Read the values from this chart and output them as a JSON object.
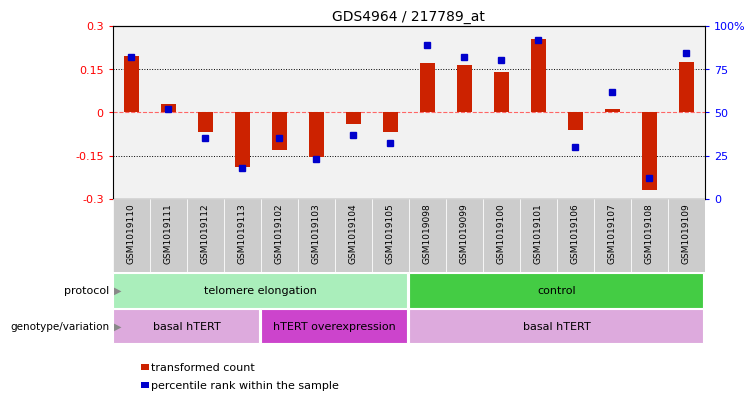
{
  "title": "GDS4964 / 217789_at",
  "samples": [
    "GSM1019110",
    "GSM1019111",
    "GSM1019112",
    "GSM1019113",
    "GSM1019102",
    "GSM1019103",
    "GSM1019104",
    "GSM1019105",
    "GSM1019098",
    "GSM1019099",
    "GSM1019100",
    "GSM1019101",
    "GSM1019106",
    "GSM1019107",
    "GSM1019108",
    "GSM1019109"
  ],
  "transformed_count": [
    0.195,
    0.03,
    -0.07,
    -0.19,
    -0.13,
    -0.155,
    -0.04,
    -0.07,
    0.17,
    0.165,
    0.14,
    0.255,
    -0.06,
    0.01,
    -0.27,
    0.175
  ],
  "percentile_rank": [
    82,
    52,
    35,
    18,
    35,
    23,
    37,
    32,
    89,
    82,
    80,
    92,
    30,
    62,
    12,
    84
  ],
  "ylim": [
    -0.3,
    0.3
  ],
  "yticks_left": [
    -0.3,
    -0.15,
    0.0,
    0.15,
    0.3
  ],
  "ytick_labels_left": [
    "-0.3",
    "-0.15",
    "0",
    "0.15",
    "0.3"
  ],
  "right_yticks_pct": [
    0,
    25,
    50,
    75,
    100
  ],
  "right_yticklabels": [
    "0",
    "25",
    "50",
    "75",
    "100%"
  ],
  "bar_color": "#cc2200",
  "dot_color": "#0000cc",
  "col_bg_color": "#cccccc",
  "protocol_groups": [
    {
      "label": "telomere elongation",
      "start": 0,
      "end": 7,
      "color": "#aaeebb"
    },
    {
      "label": "control",
      "start": 8,
      "end": 15,
      "color": "#44cc44"
    }
  ],
  "genotype_groups": [
    {
      "label": "basal hTERT",
      "start": 0,
      "end": 3,
      "color": "#ddaadd"
    },
    {
      "label": "hTERT overexpression",
      "start": 4,
      "end": 7,
      "color": "#cc44cc"
    },
    {
      "label": "basal hTERT",
      "start": 8,
      "end": 15,
      "color": "#ddaadd"
    }
  ],
  "legend_items": [
    {
      "label": "transformed count",
      "color": "#cc2200"
    },
    {
      "label": "percentile rank within the sample",
      "color": "#0000cc"
    }
  ],
  "label_protocol": "protocol",
  "label_genotype": "genotype/variation",
  "background_color": "#ffffff",
  "dotted_line_color": "#000000",
  "zero_line_color": "#ff6666"
}
